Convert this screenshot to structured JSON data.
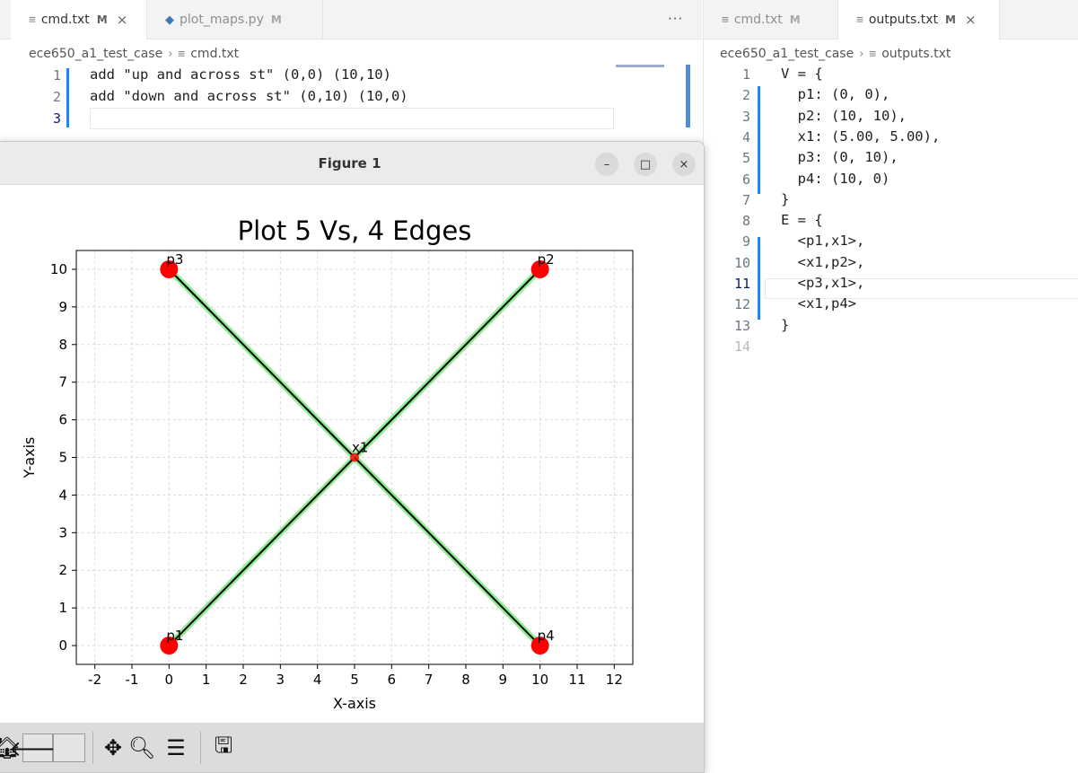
{
  "left_editor": {
    "tabs": [
      {
        "icon": "≡",
        "label": "cmd.txt",
        "modified": "M",
        "close": "×"
      },
      {
        "icon": "◆",
        "label": "plot_maps.py",
        "modified": "M"
      }
    ],
    "more": "···",
    "breadcrumb": {
      "folder": "ece650_a1_test_case",
      "sep": "›",
      "file_icon": "≡",
      "file": "cmd.txt"
    },
    "line_numbers": [
      "1",
      "2",
      "3"
    ],
    "lines": [
      "add \"up and across st\" (0,0) (10,10)",
      "add \"down and across st\" (0,10) (10,0)",
      ""
    ]
  },
  "right_editor": {
    "tabs": [
      {
        "icon": "≡",
        "label": "cmd.txt",
        "modified": "M"
      },
      {
        "icon": "≡",
        "label": "outputs.txt",
        "modified": "M",
        "close": "×"
      }
    ],
    "breadcrumb": {
      "folder": "ece650_a1_test_case",
      "sep": "›",
      "file_icon": "≡",
      "file": "outputs.txt"
    },
    "line_numbers": [
      "1",
      "2",
      "3",
      "4",
      "5",
      "6",
      "7",
      "8",
      "9",
      "10",
      "11",
      "12",
      "13",
      "14"
    ],
    "lines": [
      "V = {",
      "  p1: (0, 0),",
      "  p2: (10, 10),",
      "  x1: (5.00, 5.00),",
      "  p3: (0, 10),",
      "  p4: (10, 0)",
      "}",
      "E = {",
      "  <p1,x1>,",
      "  <x1,p2>,",
      "  <p3,x1>,",
      "  <x1,p4>",
      "}",
      ""
    ]
  },
  "figure": {
    "title": "Figure 1",
    "buttons": {
      "minimize": "–",
      "maximize": "□",
      "close": "×"
    },
    "toolbar": {
      "home": "🏠︎",
      "back": "🡐",
      "pan": "✥",
      "zoom": "🔍︎",
      "config": "☰",
      "save": "🖫"
    }
  },
  "chart_data": {
    "type": "scatter",
    "title": "Plot 5 Vs, 4 Edges",
    "xlabel": "X-axis",
    "ylabel": "Y-axis",
    "xlim": [
      -2.5,
      12.5
    ],
    "ylim": [
      -0.5,
      10.5
    ],
    "xticks": [
      -2,
      -1,
      0,
      1,
      2,
      3,
      4,
      5,
      6,
      7,
      8,
      9,
      10,
      11,
      12
    ],
    "yticks": [
      0,
      1,
      2,
      3,
      4,
      5,
      6,
      7,
      8,
      9,
      10
    ],
    "grid": true,
    "points": [
      {
        "label": "p1",
        "x": 0,
        "y": 0
      },
      {
        "label": "p2",
        "x": 10,
        "y": 10
      },
      {
        "label": "x1",
        "x": 5,
        "y": 5
      },
      {
        "label": "p3",
        "x": 0,
        "y": 10
      },
      {
        "label": "p4",
        "x": 10,
        "y": 0
      }
    ],
    "edges": [
      {
        "from": "p1",
        "to": "x1"
      },
      {
        "from": "x1",
        "to": "p2"
      },
      {
        "from": "p3",
        "to": "x1"
      },
      {
        "from": "x1",
        "to": "p4"
      }
    ],
    "colors": {
      "point": "#ff0000",
      "edge_outer": "#90ee90",
      "edge_inner": "#000000"
    }
  }
}
